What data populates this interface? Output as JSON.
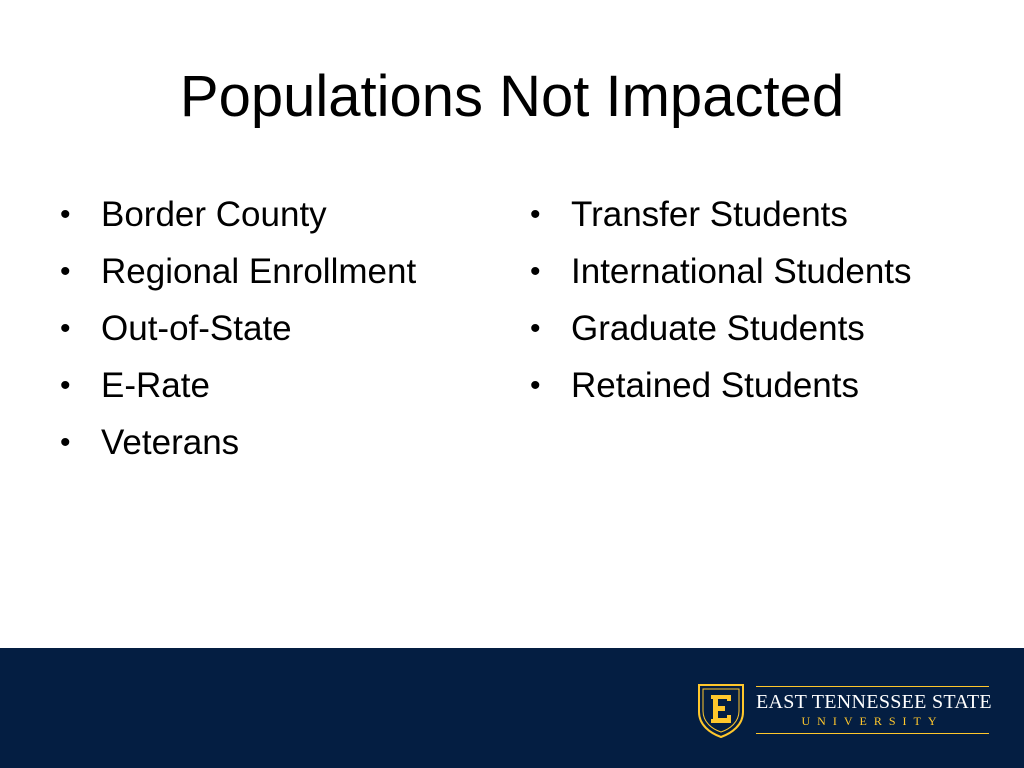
{
  "slide": {
    "title": "Populations Not Impacted",
    "left_column": [
      {
        "label": "Border County"
      },
      {
        "label": "Regional Enrollment"
      },
      {
        "label": "Out-of-State"
      },
      {
        "label": "E-Rate"
      },
      {
        "label": "Veterans"
      }
    ],
    "right_column": [
      {
        "label": "Transfer Students"
      },
      {
        "label": "International Students"
      },
      {
        "label": "Graduate Students"
      },
      {
        "label": "Retained Students"
      }
    ],
    "bullet_glyph": "•"
  },
  "footer": {
    "logo_icon": "etsu-shield-icon",
    "logo_name": "EAST TENNESSEE STATE",
    "logo_sub": "UNIVERSITY",
    "colors": {
      "band": "#041e42",
      "gold": "#ffc72c",
      "text": "#ffffff"
    }
  }
}
